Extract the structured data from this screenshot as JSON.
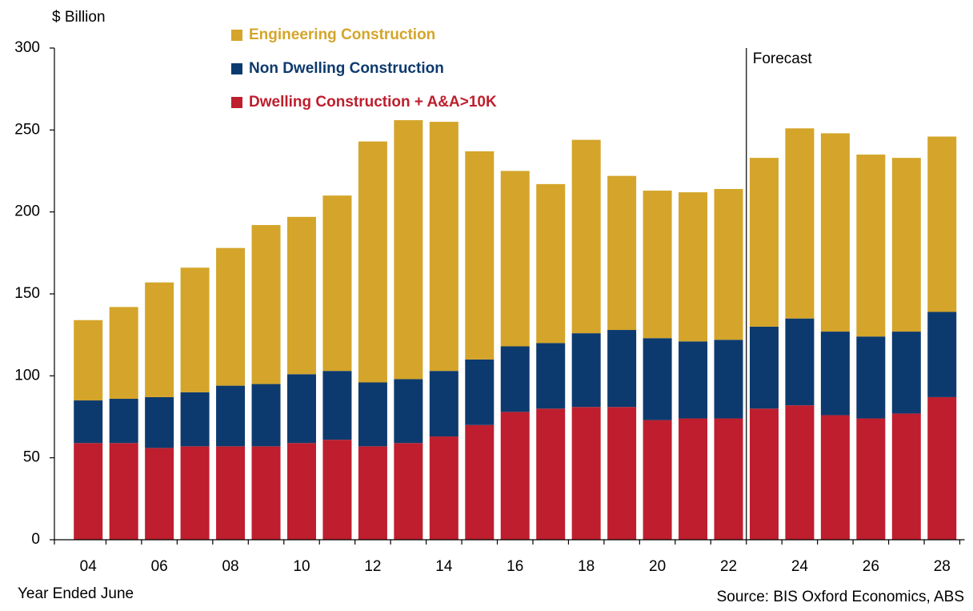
{
  "chart_data": {
    "type": "stacked_bar",
    "y_label": "$ Billion",
    "x_label": "Year Ended June",
    "source": "Source:  BIS Oxford Economics, ABS",
    "annotation": "Forecast",
    "categories": [
      "04",
      null,
      "06",
      null,
      "08",
      null,
      "10",
      null,
      "12",
      null,
      "14",
      null,
      "16",
      null,
      "18",
      null,
      "20",
      null,
      "22",
      null,
      "24",
      null,
      "26",
      null,
      "28"
    ],
    "series": [
      {
        "name": "Dwelling Construction + A&A>10K",
        "color": "#be1e2d",
        "values": [
          59,
          59,
          56,
          57,
          57,
          57,
          59,
          61,
          57,
          59,
          63,
          70,
          78,
          80,
          81,
          81,
          73,
          74,
          74,
          80,
          82,
          76,
          74,
          77,
          87
        ]
      },
      {
        "name": "Non Dwelling Construction",
        "color": "#0d3a6e",
        "values": [
          26,
          27,
          31,
          33,
          37,
          38,
          42,
          42,
          39,
          39,
          40,
          40,
          40,
          40,
          45,
          47,
          50,
          47,
          48,
          50,
          53,
          51,
          50,
          50,
          52
        ]
      },
      {
        "name": "Engineering Construction",
        "color": "#d4a52a",
        "values": [
          49,
          56,
          70,
          76,
          84,
          97,
          96,
          107,
          147,
          158,
          152,
          127,
          107,
          97,
          118,
          94,
          90,
          91,
          92,
          103,
          116,
          121,
          111,
          106,
          107
        ]
      }
    ],
    "ylim": [
      0,
      300
    ],
    "yticks": [
      0,
      50,
      100,
      150,
      200,
      250,
      300
    ],
    "grid": false
  }
}
